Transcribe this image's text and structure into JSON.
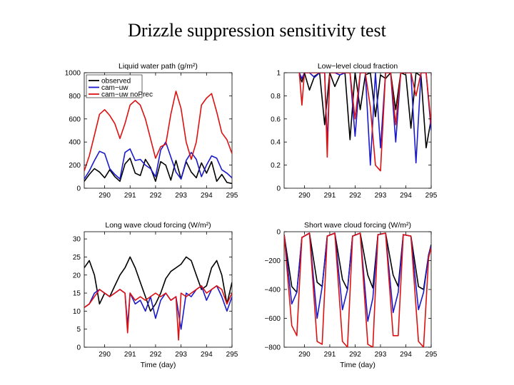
{
  "slide": {
    "title": "Drizzle suppression sensitivity test"
  },
  "colors": {
    "observed": "#000000",
    "cam_uw": "#1a1acc",
    "cam_uw_noprec": "#dd1111"
  },
  "chart_data": [
    {
      "id": "lwp",
      "type": "line",
      "title": "Liquid water path (g/m²)",
      "xlabel": "",
      "ylabel": "",
      "xlim": [
        289.2,
        295
      ],
      "ylim": [
        0,
        1000
      ],
      "xticks": [
        "290",
        "291",
        "292",
        "293",
        "294",
        "295"
      ],
      "yticks": [
        "0",
        "200",
        "400",
        "600",
        "800",
        "1000"
      ],
      "legend": {
        "placement": "top-left",
        "entries": [
          "observed",
          "cam−uw",
          "cam−uw noPrec"
        ]
      },
      "series": [
        {
          "name": "observed",
          "color": "#000000",
          "x": [
            289.2,
            289.4,
            289.6,
            289.8,
            290.0,
            290.2,
            290.4,
            290.6,
            290.8,
            291.0,
            291.2,
            291.4,
            291.6,
            291.8,
            292.0,
            292.2,
            292.4,
            292.6,
            292.8,
            293.0,
            293.2,
            293.4,
            293.6,
            293.8,
            294.0,
            294.2,
            294.4,
            294.6,
            294.8,
            295.0
          ],
          "y": [
            60,
            120,
            170,
            140,
            90,
            160,
            100,
            60,
            210,
            260,
            130,
            110,
            250,
            180,
            60,
            230,
            200,
            70,
            240,
            80,
            230,
            140,
            90,
            220,
            130,
            230,
            60,
            120,
            50,
            40
          ]
        },
        {
          "name": "cam−uw",
          "color": "#1a1acc",
          "x": [
            289.2,
            289.4,
            289.6,
            289.8,
            290.0,
            290.2,
            290.4,
            290.6,
            290.8,
            291.0,
            291.2,
            291.4,
            291.6,
            291.8,
            292.0,
            292.2,
            292.4,
            292.6,
            292.8,
            293.0,
            293.2,
            293.4,
            293.6,
            293.8,
            294.0,
            294.2,
            294.4,
            294.6,
            294.8,
            295.0
          ],
          "y": [
            80,
            150,
            240,
            320,
            300,
            170,
            120,
            80,
            310,
            340,
            240,
            250,
            200,
            170,
            100,
            330,
            400,
            270,
            140,
            80,
            240,
            310,
            250,
            100,
            200,
            280,
            260,
            160,
            130,
            90
          ]
        },
        {
          "name": "cam−uw noPrec",
          "color": "#dd1111",
          "x": [
            289.2,
            289.4,
            289.6,
            289.8,
            290.0,
            290.2,
            290.4,
            290.6,
            290.8,
            291.0,
            291.2,
            291.4,
            291.6,
            291.8,
            292.0,
            292.2,
            292.4,
            292.6,
            292.8,
            293.0,
            293.2,
            293.4,
            293.6,
            293.8,
            294.0,
            294.2,
            294.4,
            294.6,
            294.8,
            295.0
          ],
          "y": [
            150,
            280,
            460,
            640,
            680,
            630,
            560,
            430,
            560,
            720,
            760,
            720,
            600,
            430,
            260,
            360,
            380,
            640,
            840,
            690,
            400,
            250,
            400,
            720,
            780,
            820,
            660,
            480,
            420,
            300
          ]
        }
      ]
    },
    {
      "id": "cloud_fraction",
      "type": "line",
      "title": "Low−level cloud fraction",
      "xlabel": "",
      "ylabel": "",
      "xlim": [
        289.2,
        295
      ],
      "ylim": [
        0,
        1
      ],
      "xticks": [
        "290",
        "291",
        "292",
        "293",
        "294",
        "295"
      ],
      "yticks": [
        "0",
        "0.2",
        "0.4",
        "0.6",
        "0.8",
        "1"
      ],
      "series": [
        {
          "name": "observed",
          "color": "#000000",
          "x": [
            289.8,
            289.9,
            290.0,
            290.2,
            290.4,
            290.6,
            290.8,
            291.0,
            291.2,
            291.4,
            291.6,
            291.8,
            292.0,
            292.2,
            292.4,
            292.6,
            292.8,
            293.0,
            293.2,
            293.4,
            293.6,
            293.8,
            294.0,
            294.2,
            294.4,
            294.6,
            294.8,
            295.0
          ],
          "y": [
            0.98,
            0.92,
            1.0,
            0.85,
            0.97,
            1.0,
            0.55,
            1.0,
            0.88,
            0.98,
            1.0,
            0.42,
            1.0,
            0.68,
            0.98,
            1.0,
            0.62,
            0.98,
            0.95,
            1.0,
            0.68,
            1.0,
            0.98,
            0.52,
            1.0,
            0.97,
            0.35,
            0.6
          ]
        },
        {
          "name": "cam−uw",
          "color": "#1a1acc",
          "x": [
            289.8,
            289.9,
            290.0,
            290.2,
            290.4,
            290.6,
            290.8,
            290.9,
            291.0,
            291.2,
            291.4,
            291.6,
            291.8,
            292.0,
            292.2,
            292.4,
            292.6,
            292.8,
            293.0,
            293.2,
            293.4,
            293.6,
            293.8,
            294.0,
            294.2,
            294.4,
            294.6,
            294.8,
            295.0
          ],
          "y": [
            1.0,
            0.95,
            1.0,
            1.0,
            0.96,
            1.0,
            1.0,
            0.38,
            1.0,
            1.0,
            0.98,
            1.0,
            1.0,
            0.45,
            1.0,
            1.0,
            0.2,
            1.0,
            0.35,
            1.0,
            1.0,
            0.4,
            1.0,
            1.0,
            1.0,
            0.22,
            1.0,
            1.0,
            0.5
          ]
        },
        {
          "name": "cam−uw noPrec",
          "color": "#dd1111",
          "x": [
            289.8,
            289.9,
            290.0,
            290.2,
            290.4,
            290.6,
            290.8,
            290.9,
            291.0,
            291.2,
            291.4,
            291.6,
            291.8,
            292.0,
            292.2,
            292.4,
            292.6,
            292.8,
            293.0,
            293.2,
            293.4,
            293.6,
            293.8,
            294.0,
            294.2,
            294.4,
            294.6,
            294.8,
            295.0
          ],
          "y": [
            1.0,
            0.72,
            1.0,
            1.0,
            1.0,
            1.0,
            1.0,
            0.27,
            1.0,
            1.0,
            1.0,
            1.0,
            1.0,
            0.6,
            1.0,
            1.0,
            0.7,
            0.2,
            0.15,
            1.0,
            1.0,
            0.55,
            1.0,
            1.0,
            1.0,
            0.8,
            1.0,
            1.0,
            0.55
          ]
        }
      ]
    },
    {
      "id": "lwcf",
      "type": "line",
      "title": "Long wave cloud forcing (W/m²)",
      "xlabel": "Time (day)",
      "ylabel": "",
      "xlim": [
        289.2,
        295
      ],
      "ylim": [
        0,
        32
      ],
      "xticks": [
        "290",
        "291",
        "292",
        "293",
        "294",
        "295"
      ],
      "yticks": [
        "0",
        "5",
        "10",
        "15",
        "20",
        "25",
        "30"
      ],
      "series": [
        {
          "name": "observed",
          "color": "#000000",
          "x": [
            289.2,
            289.4,
            289.6,
            289.8,
            290.0,
            290.2,
            290.4,
            290.6,
            290.8,
            291.0,
            291.2,
            291.4,
            291.6,
            291.8,
            292.0,
            292.2,
            292.4,
            292.6,
            292.8,
            293.0,
            293.2,
            293.4,
            293.6,
            293.8,
            294.0,
            294.2,
            294.4,
            294.6,
            294.8,
            295.0
          ],
          "y": [
            22,
            24,
            20,
            12,
            15,
            14,
            17,
            20,
            22,
            25,
            22,
            18,
            14,
            10,
            12,
            15,
            19,
            21,
            22,
            23,
            25,
            24,
            20,
            16,
            17,
            22,
            24,
            20,
            12,
            18
          ]
        },
        {
          "name": "cam−uw",
          "color": "#1a1acc",
          "x": [
            289.2,
            289.4,
            289.6,
            289.8,
            290.0,
            290.2,
            290.4,
            290.6,
            290.8,
            290.9,
            291.0,
            291.2,
            291.4,
            291.6,
            291.8,
            292.0,
            292.2,
            292.4,
            292.6,
            292.8,
            293.0,
            293.2,
            293.4,
            293.6,
            293.8,
            294.0,
            294.2,
            294.4,
            294.6,
            294.8,
            295.0
          ],
          "y": [
            11,
            12,
            15,
            16,
            15,
            14,
            15,
            16,
            15,
            6,
            15,
            12,
            13,
            10,
            14,
            8,
            13,
            15,
            13,
            14,
            5,
            15,
            14,
            16,
            17,
            13,
            16,
            17,
            14,
            10,
            14
          ]
        },
        {
          "name": "cam−uw noPrec",
          "color": "#dd1111",
          "x": [
            289.2,
            289.4,
            289.6,
            289.8,
            290.0,
            290.2,
            290.4,
            290.6,
            290.8,
            290.9,
            291.0,
            291.2,
            291.4,
            291.6,
            291.8,
            292.0,
            292.2,
            292.4,
            292.6,
            292.8,
            292.9,
            293.0,
            293.2,
            293.4,
            293.6,
            293.8,
            294.0,
            294.2,
            294.4,
            294.6,
            294.8,
            295.0
          ],
          "y": [
            11,
            12,
            14,
            16,
            15,
            14,
            15,
            16,
            15,
            4,
            15,
            13,
            14,
            13,
            14,
            15,
            14,
            15,
            13,
            14,
            2,
            15,
            14,
            15,
            16,
            17,
            15,
            16,
            17,
            16,
            12,
            15
          ]
        }
      ]
    },
    {
      "id": "swcf",
      "type": "line",
      "title": "Short wave cloud forcing (W/m²)",
      "xlabel": "Time (day)",
      "ylabel": "",
      "xlim": [
        289.2,
        295
      ],
      "ylim": [
        -800,
        0
      ],
      "xticks": [
        "290",
        "291",
        "292",
        "293",
        "294",
        "295"
      ],
      "yticks": [
        "−800",
        "−600",
        "−400",
        "−200",
        "0"
      ],
      "series": [
        {
          "name": "observed",
          "color": "#000000",
          "x": [
            289.2,
            289.5,
            289.7,
            289.9,
            290.2,
            290.5,
            290.7,
            290.9,
            291.2,
            291.5,
            291.7,
            291.9,
            292.2,
            292.5,
            292.7,
            292.9,
            293.2,
            293.5,
            293.7,
            293.9,
            294.2,
            294.5,
            294.7,
            294.9,
            295.0
          ],
          "y": [
            -20,
            -380,
            -420,
            -40,
            -10,
            -350,
            -380,
            -30,
            -10,
            -330,
            -400,
            -30,
            -10,
            -300,
            -390,
            -20,
            -10,
            -300,
            -380,
            -20,
            -30,
            -380,
            -400,
            -160,
            -90
          ]
        },
        {
          "name": "cam−uw",
          "color": "#1a1acc",
          "x": [
            289.2,
            289.5,
            289.7,
            289.9,
            290.2,
            290.5,
            290.7,
            290.9,
            291.2,
            291.5,
            291.7,
            291.9,
            292.2,
            292.5,
            292.7,
            292.9,
            293.2,
            293.5,
            293.7,
            293.9,
            294.2,
            294.5,
            294.7,
            294.9,
            295.0
          ],
          "y": [
            -20,
            -500,
            -420,
            -40,
            -10,
            -600,
            -380,
            -30,
            -10,
            -540,
            -400,
            -30,
            -10,
            -620,
            -460,
            -20,
            -10,
            -560,
            -420,
            -20,
            -30,
            -540,
            -420,
            -160,
            -100
          ]
        },
        {
          "name": "cam−uw noPrec",
          "color": "#dd1111",
          "x": [
            289.2,
            289.5,
            289.7,
            289.9,
            290.2,
            290.5,
            290.7,
            290.9,
            291.2,
            291.5,
            291.7,
            291.9,
            292.2,
            292.5,
            292.7,
            292.9,
            293.2,
            293.5,
            293.7,
            293.9,
            294.2,
            294.5,
            294.7,
            294.9,
            295.0
          ],
          "y": [
            -20,
            -650,
            -720,
            -40,
            -10,
            -760,
            -780,
            -30,
            -10,
            -760,
            -800,
            -30,
            -10,
            -780,
            -800,
            -20,
            -10,
            -720,
            -720,
            -20,
            -30,
            -760,
            -800,
            -180,
            -110
          ]
        }
      ]
    }
  ]
}
